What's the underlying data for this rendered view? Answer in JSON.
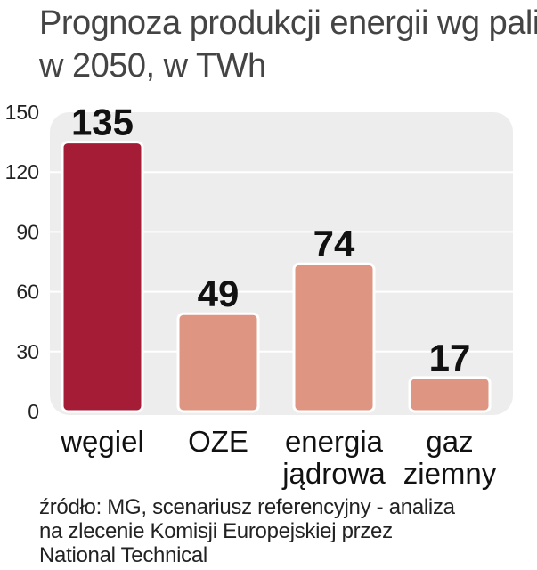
{
  "title_lines": [
    "Prognoza produkcji energii wg paliw",
    "w 2050, w TWh"
  ],
  "source_lines": [
    "źródło: MG, scenariusz referencyjny - analiza",
    "na zlecenie Komisji Europejskiej przez",
    "National Technical"
  ],
  "colors": {
    "highlight": "#A51C36",
    "bar": "#DE9582",
    "panel": "#EDEDED",
    "gridline": "#FFFFFF",
    "text": "#222222"
  },
  "chart_data": {
    "type": "bar",
    "categories": [
      [
        "węgiel"
      ],
      [
        "OZE"
      ],
      [
        "energia",
        "jądrowa"
      ],
      [
        "gaz",
        "ziemny"
      ]
    ],
    "values": [
      135,
      49,
      74,
      17
    ],
    "highlight_index": 0,
    "yticks": [
      0,
      30,
      60,
      90,
      120,
      150
    ],
    "ylim": [
      0,
      150
    ],
    "grid": true,
    "data_labels": true
  }
}
